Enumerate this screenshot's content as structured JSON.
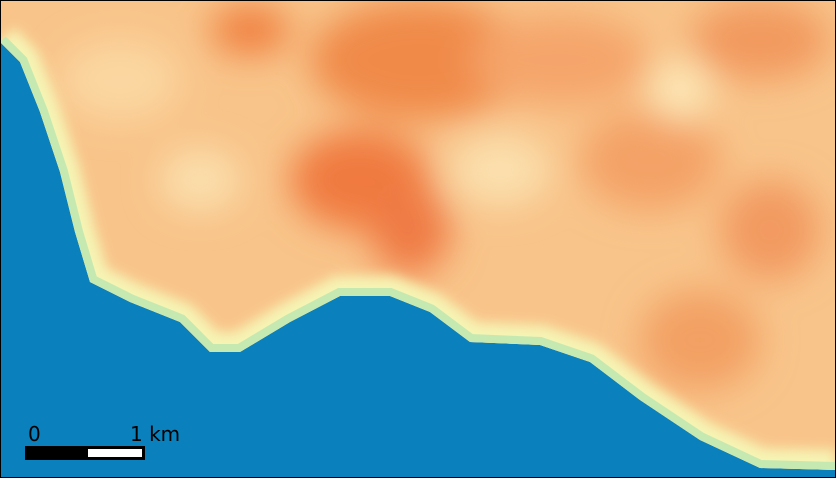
{
  "scale_bar": {
    "labels": [
      "0",
      "1 km"
    ]
  }
}
